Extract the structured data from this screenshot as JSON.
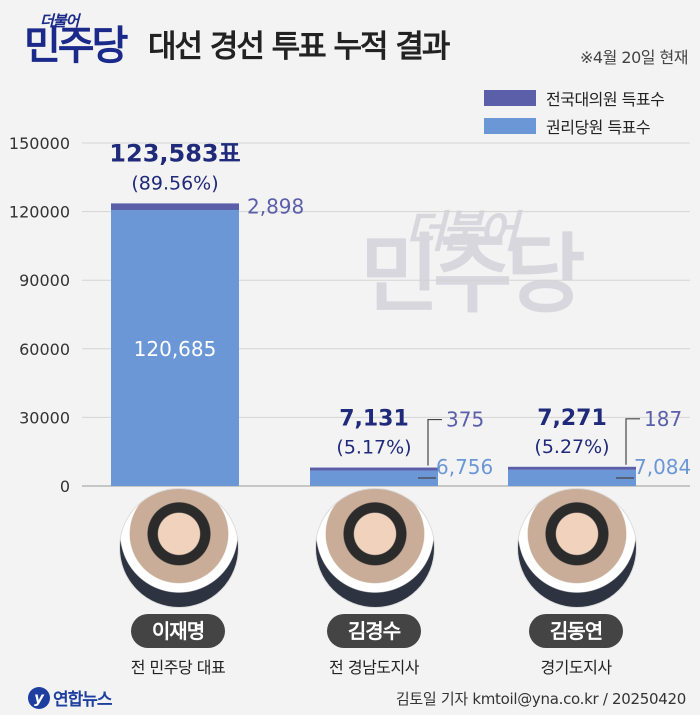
{
  "header": {
    "logo_small": "더불어",
    "logo_big": "민주당",
    "title": "대선 경선 투표 누적 결과",
    "date_note": "※4월 20일 현재"
  },
  "legend": [
    {
      "label": "전국대의원 득표수",
      "color": "#5b5fa9"
    },
    {
      "label": "권리당원 득표수",
      "color": "#6c97d6"
    }
  ],
  "watermark": {
    "small": "더불어",
    "big": "민주당"
  },
  "chart_data": {
    "type": "bar",
    "stacked": true,
    "categories": [
      "이재명",
      "김경수",
      "김동연"
    ],
    "series": [
      {
        "name": "권리당원 득표수",
        "values": [
          120685,
          6756,
          7084
        ],
        "labels": [
          "120,685",
          "6,756",
          "7,084"
        ],
        "color": "#6c97d6"
      },
      {
        "name": "전국대의원 득표수",
        "values": [
          2898,
          375,
          187
        ],
        "labels": [
          "2,898",
          "375",
          "187"
        ],
        "color": "#5b5fa9"
      }
    ],
    "totals": [
      "123,583표",
      "7,131",
      "7,271"
    ],
    "percents": [
      "(89.56%)",
      "(5.17%)",
      "(5.27%)"
    ],
    "ylim": [
      0,
      150000
    ],
    "yticks": [
      0,
      30000,
      60000,
      90000,
      120000,
      150000
    ],
    "ytick_labels": [
      "0",
      "30000",
      "60000",
      "90000",
      "120000",
      "150000"
    ],
    "grid": true
  },
  "candidates": [
    {
      "name": "이재명",
      "caption": "전 민주당 대표",
      "photo": "portrait-photo"
    },
    {
      "name": "김경수",
      "caption": "전 경남도지사",
      "photo": "portrait-photo"
    },
    {
      "name": "김동연",
      "caption": "경기도지사",
      "photo": "portrait-photo"
    }
  ],
  "footer": {
    "logo_icon": "y",
    "logo_name": "연합뉴스",
    "credit": "김토일 기자 kmtoil@yna.co.kr / 20250420"
  }
}
